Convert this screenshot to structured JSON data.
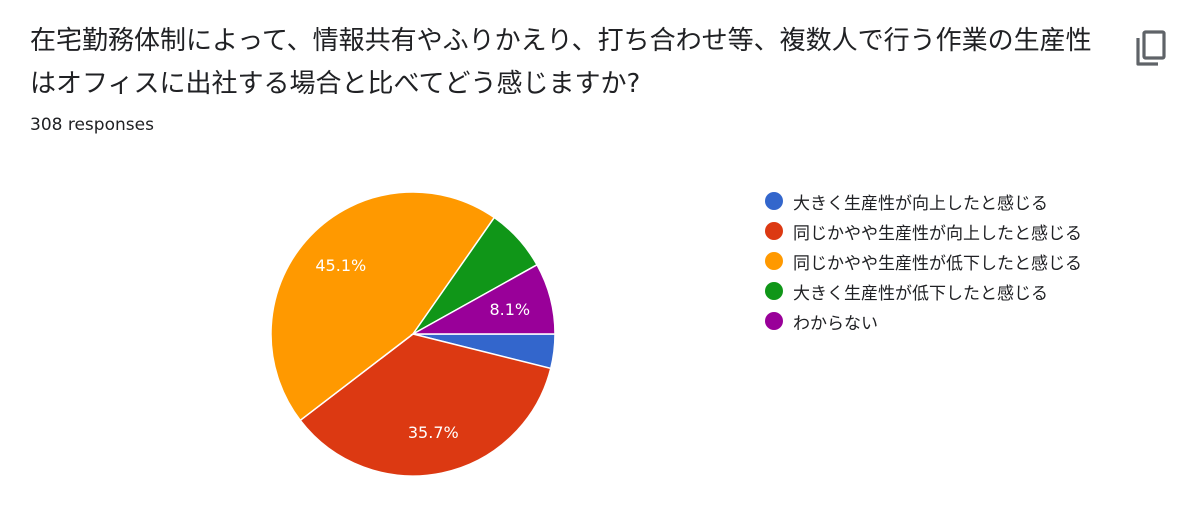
{
  "question": {
    "title": "在宅勤務体制によって、情報共有やふりかえり、打ち合わせ等、複数人で行う作業の生産性はオフィスに出社する場合と比べてどう感じますか?",
    "responses": "308 responses"
  },
  "toolbar": {
    "copy_icon": "copy-icon"
  },
  "chart_data": {
    "type": "pie",
    "title": "",
    "start_angle_deg": 90,
    "direction": "clockwise",
    "legend_position": "right",
    "slices": [
      {
        "label": "大きく生産性が向上したと感じる",
        "value": 3.9,
        "color": "#3366cc",
        "display": ""
      },
      {
        "label": "同じかやや生産性が向上したと感じる",
        "value": 35.7,
        "color": "#dc3912",
        "display": "35.7%"
      },
      {
        "label": "同じかやや生産性が低下したと感じる",
        "value": 45.1,
        "color": "#ff9900",
        "display": "45.1%"
      },
      {
        "label": "大きく生産性が低下したと感じる",
        "value": 7.2,
        "color": "#109618",
        "display": ""
      },
      {
        "label": "わからない",
        "value": 8.1,
        "color": "#990099",
        "display": "8.1%"
      }
    ]
  }
}
